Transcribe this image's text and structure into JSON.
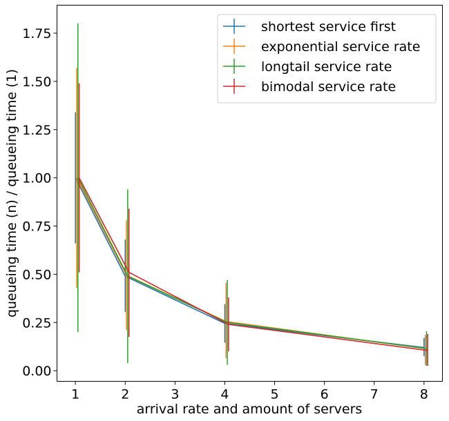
{
  "chart_data": {
    "type": "line",
    "title": "",
    "xlabel": "arrival rate and amount of servers",
    "ylabel": "queueing time (n) / queueing time (1)",
    "xlim": [
      0.63,
      8.37
    ],
    "ylim": [
      -0.055,
      1.895
    ],
    "xticks": [
      1,
      2,
      3,
      4,
      5,
      6,
      7,
      8
    ],
    "xtick_labels": [
      "1",
      "2",
      "3",
      "4",
      "5",
      "6",
      "7",
      "8"
    ],
    "yticks": [
      0.0,
      0.25,
      0.5,
      0.75,
      1.0,
      1.25,
      1.5,
      1.75
    ],
    "ytick_labels": [
      "0.00",
      "0.25",
      "0.50",
      "0.75",
      "1.00",
      "1.25",
      "1.50",
      "1.75"
    ],
    "grid": false,
    "legend_position": "top-right",
    "series": [
      {
        "name": "shortest service first",
        "color": "#1f77b4",
        "x": [
          1,
          2,
          4,
          8
        ],
        "y": [
          1.0,
          0.49,
          0.245,
          0.12
        ],
        "yerr_low": [
          0.66,
          0.305,
          0.145,
          0.075
        ],
        "yerr_high": [
          1.34,
          0.68,
          0.345,
          0.17
        ]
      },
      {
        "name": "exponential service rate",
        "color": "#ff7f0e",
        "x": [
          1.025,
          2.025,
          4.025,
          8.025
        ],
        "y": [
          1.0,
          0.495,
          0.255,
          0.115
        ],
        "yerr_low": [
          0.43,
          0.21,
          0.065,
          0.03
        ],
        "yerr_high": [
          1.57,
          0.78,
          0.455,
          0.185
        ]
      },
      {
        "name": "longtail service rate",
        "color": "#2ca02c",
        "x": [
          1.05,
          2.05,
          4.05,
          8.05
        ],
        "y": [
          1.0,
          0.49,
          0.25,
          0.115
        ],
        "yerr_low": [
          0.2,
          0.04,
          0.03,
          0.025
        ],
        "yerr_high": [
          1.8,
          0.94,
          0.47,
          0.205
        ]
      },
      {
        "name": "bimodal service rate",
        "color": "#d62728",
        "x": [
          1.075,
          2.075,
          4.075,
          8.075
        ],
        "y": [
          1.0,
          0.51,
          0.24,
          0.105
        ],
        "yerr_low": [
          0.51,
          0.175,
          0.1,
          0.025
        ],
        "yerr_high": [
          1.49,
          0.84,
          0.38,
          0.19
        ]
      }
    ]
  }
}
